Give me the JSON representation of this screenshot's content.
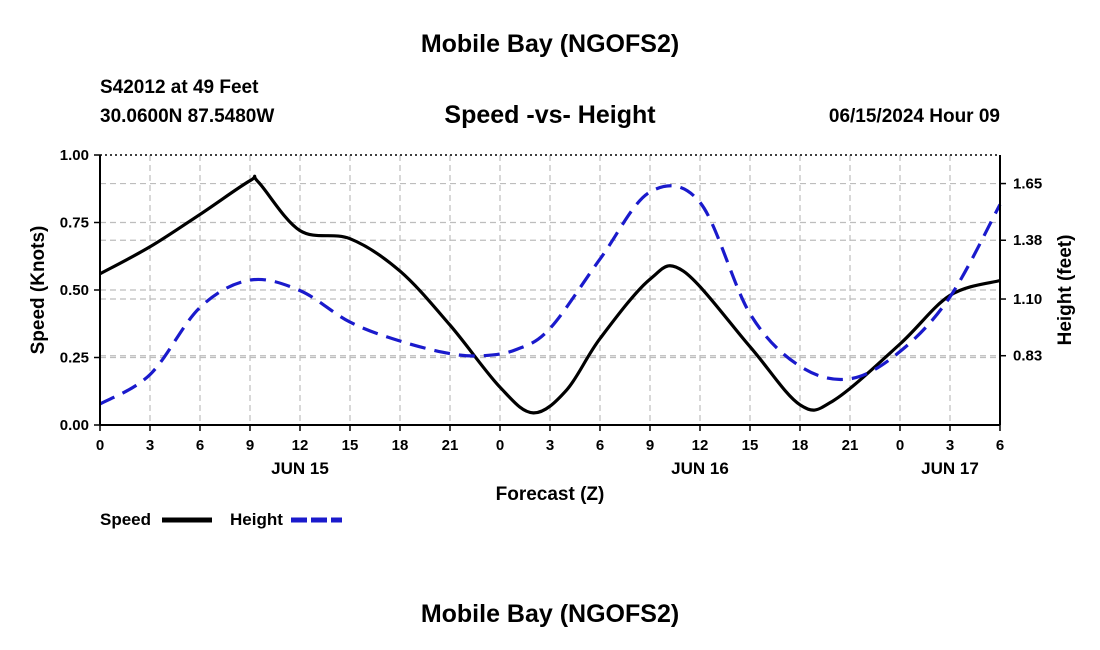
{
  "header": {
    "title": "Mobile Bay (NGOFS2)",
    "station": "S42012 at 49 Feet",
    "coords": "30.0600N  87.5480W",
    "subtitle": "Speed -vs- Height",
    "datetime": "06/15/2024 Hour 09"
  },
  "footer": {
    "title": "Mobile Bay (NGOFS2)"
  },
  "chart_data": {
    "type": "line",
    "title": "Speed -vs- Height",
    "xlabel": "Forecast (Z)",
    "ylabel": "Speed (Knots)",
    "y2label": "Height (feet)",
    "xlim": [
      0,
      54
    ],
    "ylim": [
      0,
      1.0
    ],
    "y2lim": [
      0.5,
      1.786
    ],
    "x_ticks": [
      0,
      3,
      6,
      9,
      12,
      15,
      18,
      21,
      24,
      27,
      30,
      33,
      36,
      39,
      42,
      45,
      48,
      51,
      54
    ],
    "x_tick_labels": [
      "0",
      "3",
      "6",
      "9",
      "12",
      "15",
      "18",
      "21",
      "0",
      "3",
      "6",
      "9",
      "12",
      "15",
      "18",
      "21",
      "0",
      "3",
      "6"
    ],
    "day_labels": [
      {
        "x": 12,
        "label": "JUN 15"
      },
      {
        "x": 36,
        "label": "JUN 16"
      },
      {
        "x": 51,
        "label": "JUN 17"
      }
    ],
    "y_ticks": [
      0,
      0.25,
      0.5,
      0.75,
      1.0
    ],
    "y_tick_labels": [
      "0.00",
      "0.25",
      "0.50",
      "0.75",
      "1.00"
    ],
    "y2_ticks": [
      0.83,
      1.1,
      1.38,
      1.65
    ],
    "y2_tick_labels": [
      "0.83",
      "1.10",
      "1.38",
      "1.65"
    ],
    "legend_position": "bottom-left",
    "series": [
      {
        "name": "Speed",
        "axis": "left",
        "color": "#000000",
        "dash": "solid",
        "x": [
          0,
          3,
          6,
          9,
          9.5,
          12,
          15,
          18,
          21,
          24,
          26,
          28,
          30,
          33,
          35,
          39,
          42,
          44,
          48,
          51,
          54
        ],
        "values": [
          0.56,
          0.66,
          0.78,
          0.905,
          0.9,
          0.72,
          0.69,
          0.57,
          0.37,
          0.14,
          0.045,
          0.13,
          0.32,
          0.54,
          0.57,
          0.29,
          0.075,
          0.09,
          0.3,
          0.48,
          0.535
        ]
      },
      {
        "name": "Height",
        "axis": "right",
        "color": "#1a1acc",
        "dash": "dashed",
        "x": [
          0,
          3,
          6,
          9,
          12,
          15,
          18,
          21,
          23,
          25,
          27,
          30,
          33,
          36,
          39,
          42,
          45,
          48,
          51,
          54
        ],
        "values": [
          0.6,
          0.74,
          1.06,
          1.19,
          1.14,
          0.99,
          0.9,
          0.84,
          0.83,
          0.86,
          0.96,
          1.29,
          1.61,
          1.56,
          1.03,
          0.78,
          0.72,
          0.85,
          1.11,
          1.55
        ]
      }
    ]
  }
}
